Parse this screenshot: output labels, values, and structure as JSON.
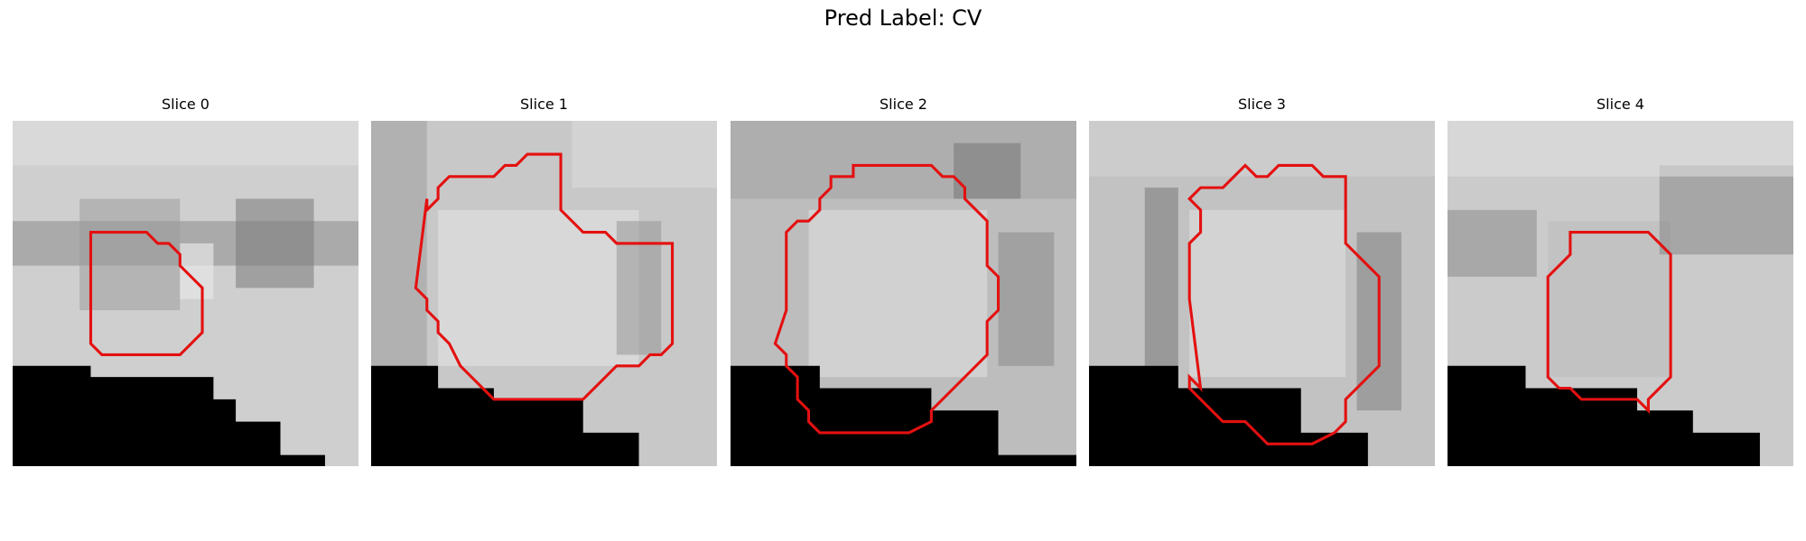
{
  "figure": {
    "title": "Pred Label: CV"
  },
  "style": {
    "contour_color": "#e41010",
    "mask_color": "#000000"
  },
  "slices": [
    {
      "label": "Slice 0"
    },
    {
      "label": "Slice 1"
    },
    {
      "label": "Slice 2"
    },
    {
      "label": "Slice 3"
    },
    {
      "label": "Slice 4"
    }
  ]
}
